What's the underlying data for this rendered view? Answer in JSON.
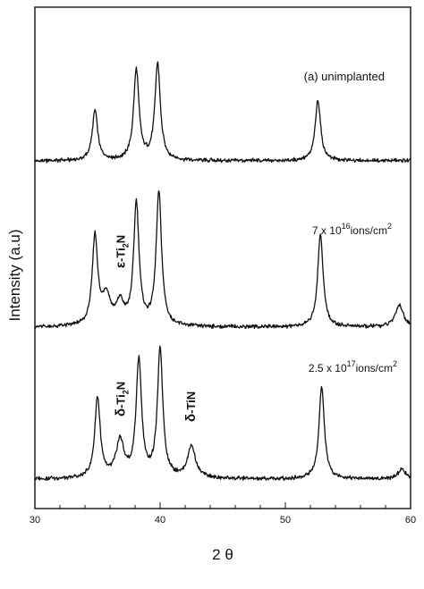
{
  "chart_data": {
    "type": "line",
    "xlabel": "2 θ",
    "ylabel": "Intensity (a.u)",
    "xlim": [
      30,
      60
    ],
    "x_ticks": [
      "30",
      "40",
      "50",
      "60"
    ],
    "y_ticks": "none",
    "grid": false,
    "legend": "none",
    "series": [
      {
        "name": "(a) unimplanted",
        "label_parts": {
          "text": "(a) unimplanted"
        },
        "peaks": [
          {
            "x": 34.8,
            "height": 0.52
          },
          {
            "x": 38.1,
            "height": 0.93
          },
          {
            "x": 39.8,
            "height": 1.0
          },
          {
            "x": 52.6,
            "height": 0.63
          }
        ]
      },
      {
        "name": "7 x 10^16 ions/cm^2",
        "label_parts": {
          "pre": "7 x 10",
          "sup": "16",
          "mid": "ions/cm",
          "sup2": "2"
        },
        "peaks": [
          {
            "x": 34.8,
            "height": 0.92
          },
          {
            "x": 35.7,
            "height": 0.3
          },
          {
            "x": 36.8,
            "height": 0.22
          },
          {
            "x": 38.1,
            "height": 1.26
          },
          {
            "x": 39.9,
            "height": 1.38
          },
          {
            "x": 52.8,
            "height": 0.96
          },
          {
            "x": 59.1,
            "height": 0.23
          }
        ]
      },
      {
        "name": "2.5 x 10^17 ions/cm^2",
        "label_parts": {
          "pre": "2.5 x 10",
          "sup": "17",
          "mid": "ions/cm",
          "sup2": "2"
        },
        "peaks": [
          {
            "x": 35.0,
            "height": 0.84
          },
          {
            "x": 36.8,
            "height": 0.38
          },
          {
            "x": 38.3,
            "height": 1.22
          },
          {
            "x": 40.0,
            "height": 1.33
          },
          {
            "x": 42.5,
            "height": 0.33
          },
          {
            "x": 52.9,
            "height": 0.95
          },
          {
            "x": 59.3,
            "height": 0.1
          }
        ]
      }
    ],
    "annotations": [
      {
        "series": 1,
        "x": 36.9,
        "greek": "ε",
        "rest": "-Ti",
        "sub": "2",
        "tail": "N"
      },
      {
        "series": 2,
        "x": 36.9,
        "greek": "δ",
        "rest": "-Ti",
        "sub": "2",
        "tail": "N"
      },
      {
        "series": 2,
        "x": 42.5,
        "greek": "δ",
        "rest": "-TiN",
        "sub": "",
        "tail": ""
      }
    ]
  }
}
